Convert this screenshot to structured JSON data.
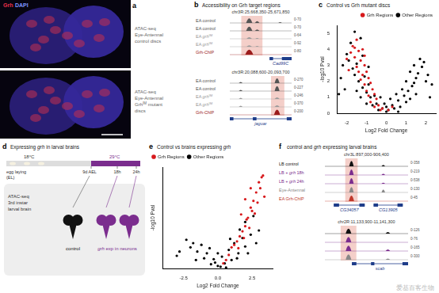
{
  "panel_a": {
    "label": "a",
    "stain": [
      "Grh",
      "DAPI"
    ],
    "captions": [
      [
        "ATAC-seq",
        "Eye-Antennal",
        "control discs"
      ],
      [
        "ATAC-seq",
        "Eye-Antennal",
        [
          "Grh",
          {
            "t": "IM",
            "sup": true
          },
          " mutant"
        ],
        "discs"
      ]
    ]
  },
  "panel_b": {
    "label": "b",
    "title": "Accessibility on Grh target regions",
    "tracks": [
      {
        "coords": "chr3R:25,668,350-25,671,850",
        "range": [
          25668350,
          25671850
        ],
        "highlight": [
          25669000,
          25670200
        ],
        "rows": [
          {
            "label": "EA control",
            "color": "#555555",
            "ymax": 70,
            "scale_label": "0-70",
            "peaks": [
              [
                25669450,
                350,
                58
              ],
              [
                25669900,
                250,
                22
              ],
              [
                25671200,
                200,
                10
              ]
            ]
          },
          {
            "label": "EA control",
            "color": "#555555",
            "ymax": 70,
            "scale_label": "0-70",
            "peaks": [
              [
                25669450,
                350,
                52
              ],
              [
                25669900,
                250,
                18
              ]
            ]
          },
          {
            "label": [
              "EA ",
              {
                "t": "grh",
                "i": true
              },
              {
                "t": "IM",
                "sup": true
              }
            ],
            "color": "#999999",
            "ymax": 64,
            "scale_label": "0-64",
            "peaks": [
              [
                25669450,
                300,
                18
              ],
              [
                25669900,
                200,
                10
              ]
            ]
          },
          {
            "label": [
              "EA ",
              {
                "t": "grh",
                "i": true
              },
              {
                "t": "IM",
                "sup": true
              }
            ],
            "color": "#999999",
            "ymax": 92,
            "scale_label": "0-92",
            "peaks": [
              [
                25669450,
                300,
                22
              ],
              [
                25669900,
                200,
                12
              ]
            ]
          },
          {
            "label": "Grh-ChIP",
            "color": "#9b1c1c",
            "ymax": 80,
            "scale_label": "0-80",
            "peaks": [
              [
                25669450,
                450,
                72
              ]
            ]
          }
        ],
        "genes": [
          {
            "name": "Cad99C",
            "start": 25670600,
            "end": 25671850,
            "exons": [
              [
                25670600,
                25670800
              ],
              [
                25671300,
                25671850
              ]
            ]
          }
        ]
      },
      {
        "coords": "chr3R:20,088,600-20,093,700",
        "range": [
          20088600,
          20093700
        ],
        "highlight": [
          20092000,
          20093100
        ],
        "rows": [
          {
            "label": "EA control",
            "color": "#555555",
            "ymax": 270,
            "scale_label": "0-270",
            "peaks": [
              [
                20089500,
                300,
                60
              ],
              [
                20092500,
                400,
                230
              ]
            ]
          },
          {
            "label": "EA control",
            "color": "#555555",
            "ymax": 227,
            "scale_label": "0-227",
            "peaks": [
              [
                20089500,
                300,
                50
              ],
              [
                20092500,
                400,
                200
              ]
            ]
          },
          {
            "label": [
              "EA ",
              {
                "t": "grh",
                "i": true
              },
              {
                "t": "IM",
                "sup": true
              }
            ],
            "color": "#999999",
            "ymax": 246,
            "scale_label": "0-246",
            "peaks": [
              [
                20089500,
                300,
                55
              ],
              [
                20092500,
                400,
                70
              ]
            ]
          },
          {
            "label": [
              "EA ",
              {
                "t": "grh",
                "i": true
              },
              {
                "t": "IM",
                "sup": true
              }
            ],
            "color": "#999999",
            "ymax": 370,
            "scale_label": "0-370",
            "peaks": [
              [
                20089500,
                300,
                80
              ],
              [
                20092500,
                400,
                110
              ]
            ]
          },
          {
            "label": "Grh-ChIP",
            "color": "#9b1c1c",
            "ymax": 200,
            "scale_label": "0-200",
            "peaks": [
              [
                20092500,
                500,
                185
              ]
            ]
          }
        ],
        "genes": [
          {
            "name": "jaguar",
            "start": 20088600,
            "end": 20093700,
            "exons": [
              [
                20088600,
                20088900
              ],
              [
                20090500,
                20090800
              ],
              [
                20093300,
                20093700
              ]
            ]
          }
        ]
      }
    ]
  },
  "panel_d": {
    "label": "d",
    "title": [
      "Expressing ",
      {
        "t": "grh",
        "i": true
      },
      " in larval brains"
    ],
    "temps": [
      "18°C",
      "29°C"
    ],
    "start": [
      "egg laying",
      "(EL)"
    ],
    "times": [
      "9d AEL",
      "18h",
      "24h"
    ],
    "assay": [
      "ATAC-seq",
      "3rd instar",
      "larval brain"
    ],
    "groups": [
      "control",
      [
        {
          "t": "grh",
          "i": true
        },
        " exp in neurons"
      ]
    ]
  },
  "panel_f": {
    "label": "f",
    "title": [
      "control and ",
      {
        "t": "grh",
        "i": true
      },
      " expressing larval brains"
    ],
    "tracks": [
      {
        "coords": "chr3L:897,000-906,400",
        "range": [
          897000,
          906400
        ],
        "highlight": [
          899300,
          900700
        ],
        "rows": [
          {
            "label": "LB control",
            "color": "#111111",
            "ymax": 358,
            "scale_label": "0-358",
            "peaks": [
              [
                900000,
                500,
                300
              ],
              [
                903600,
                400,
                80
              ]
            ]
          },
          {
            "label": [
              "LB + ",
              {
                "t": "grh",
                "i": true
              },
              " 18h"
            ],
            "color": "#7b2d8e",
            "ymax": 219,
            "scale_label": "0-219",
            "peaks": [
              [
                900000,
                500,
                190
              ],
              [
                903600,
                400,
                40
              ]
            ]
          },
          {
            "label": [
              "LB + ",
              {
                "t": "grh",
                "i": true
              },
              " 24h"
            ],
            "color": "#7b2d8e",
            "ymax": 538,
            "scale_label": "0-538",
            "peaks": [
              [
                900000,
                500,
                470
              ],
              [
                903600,
                400,
                90
              ]
            ]
          },
          {
            "label": "Eye-Antennal",
            "color": "#888888",
            "ymax": 130,
            "scale_label": "0-130",
            "peaks": [
              [
                900000,
                500,
                110
              ],
              [
                903600,
                400,
                60
              ]
            ]
          },
          {
            "label": "EA Grh-ChIP",
            "color": "#c0392b",
            "ymax": 45,
            "scale_label": "0-45",
            "peaks": [
              [
                900000,
                600,
                40
              ]
            ]
          }
        ],
        "genes": [
          {
            "name": "CG34057",
            "start": 898000,
            "end": 901500,
            "exons": [
              [
                898000,
                898600
              ],
              [
                900900,
                901500
              ]
            ]
          },
          {
            "name": "CG13905",
            "start": 902500,
            "end": 905800,
            "exons": [
              [
                902500,
                903000
              ],
              [
                905200,
                905800
              ]
            ]
          }
        ]
      },
      {
        "coords": "chr2R:11,133,900-11,141,300",
        "range": [
          11133900,
          11141300
        ],
        "highlight": [
          11135300,
          11136700
        ],
        "rows": [
          {
            "color": "#111111",
            "ymax": 126,
            "scale_label": "0-126",
            "peaks": [
              [
                11136000,
                500,
                100
              ],
              [
                11139500,
                400,
                30
              ]
            ]
          },
          {
            "color": "#7b2d8e",
            "ymax": 76,
            "scale_label": "0-76",
            "peaks": [
              [
                11136000,
                500,
                65
              ]
            ]
          },
          {
            "color": "#7b2d8e",
            "ymax": 165,
            "scale_label": "0-165",
            "peaks": [
              [
                11136000,
                500,
                140
              ],
              [
                11139500,
                400,
                40
              ]
            ]
          },
          {
            "color": "#888888",
            "ymax": 300,
            "scale_label": "0-300",
            "peaks": [
              [
                11136000,
                500,
                250
              ],
              [
                11139500,
                400,
                60
              ]
            ]
          }
        ],
        "genes": [
          {
            "name": "scab",
            "start": 11136300,
            "end": 11141300,
            "exons": [
              [
                11136300,
                11136700
              ],
              [
                11138000,
                11138300
              ],
              [
                11140800,
                11141300
              ]
            ]
          }
        ]
      }
    ]
  },
  "watermark": "爱基百客生物",
  "chart_data": [
    {
      "panel_label": "c",
      "type": "scatter",
      "title": "Control vs Grh mutant discs",
      "x_label": "Log2 Fold Change",
      "y_label": "-log10 Pval",
      "xlim": [
        -2.5,
        2.5
      ],
      "ylim": [
        0,
        5.5
      ],
      "xticks": [
        -2,
        -1,
        0,
        1,
        2
      ],
      "yticks": [
        0,
        1,
        2,
        3,
        4,
        5
      ],
      "grid": false,
      "legend": "upper right",
      "series": [
        {
          "name": "Grh Regions",
          "color": "#d7191c",
          "x": [
            -1.7,
            -1.5,
            -1.4,
            -1.2,
            -1.6,
            -1.3,
            -1.1,
            -1.5,
            -1.0,
            -1.2,
            -0.9,
            -1.4,
            -0.8,
            -1.1,
            -0.7,
            -1.0,
            -0.6,
            -0.9,
            -0.5,
            -0.8,
            -0.4,
            -0.6,
            -0.3,
            -1.8,
            -2.0,
            -1.9,
            -1.3,
            -0.2,
            0.1,
            0.3,
            -1.6,
            -1.1
          ],
          "values": [
            4.2,
            4.6,
            3.9,
            4.0,
            3.5,
            3.3,
            3.0,
            2.9,
            2.6,
            2.4,
            2.2,
            2.6,
            1.9,
            1.8,
            1.5,
            1.4,
            1.2,
            1.1,
            0.9,
            0.7,
            0.5,
            0.4,
            0.2,
            3.8,
            3.4,
            2.7,
            2.1,
            0.3,
            0.2,
            0.4,
            4.1,
            3.6
          ]
        },
        {
          "name": "Other Regions",
          "color": "#000000",
          "x": [
            -0.2,
            0.1,
            0.3,
            -0.5,
            0.6,
            -0.8,
            0.9,
            -1.0,
            1.1,
            -1.2,
            1.3,
            -1.4,
            1.4,
            -1.6,
            1.5,
            -1.7,
            1.6,
            -1.9,
            1.8,
            -2.0,
            1.9,
            -1.8,
            -1.6,
            -1.3,
            -2.2,
            2.1,
            2.3,
            -2.3,
            0.0,
            0.4,
            -0.4,
            0.7,
            -0.7,
            1.0,
            -1.0,
            1.2,
            -1.3,
            0.2,
            -0.1,
            0.5,
            0.8,
            1.0,
            1.2,
            -0.6,
            -0.9,
            -1.1,
            -1.5,
            -1.2,
            -0.9,
            1.4,
            1.7,
            2.0,
            -2.1,
            0.0,
            0.6,
            -0.3,
            1.5,
            -1.5,
            2.2,
            -2.4
          ],
          "values": [
            0.3,
            0.2,
            0.5,
            0.6,
            0.8,
            1.0,
            1.1,
            1.3,
            1.4,
            1.6,
            1.7,
            2.0,
            1.9,
            2.4,
            2.2,
            2.8,
            2.5,
            3.3,
            2.9,
            3.7,
            3.2,
            4.4,
            5.1,
            4.7,
            3.0,
            2.4,
            1.8,
            2.2,
            0.1,
            0.3,
            0.2,
            0.4,
            0.5,
            0.7,
            0.6,
            0.9,
            1.0,
            0.9,
            0.6,
            1.2,
            1.5,
            2.0,
            2.6,
            1.1,
            1.8,
            2.3,
            3.1,
            3.6,
            2.9,
            3.0,
            3.4,
            2.0,
            1.5,
            0.4,
            0.1,
            1.0,
            1.2,
            1.4,
            1.0,
            1.2
          ]
        }
      ]
    },
    {
      "panel_label": "e",
      "type": "scatter",
      "title": [
        "Control vs brains expressing ",
        {
          "t": "grh",
          "i": true
        }
      ],
      "x_label": "Log2 Fold Change",
      "y_label": "-log10 Pval",
      "xlim": [
        -4,
        4
      ],
      "ylim": [
        0,
        12
      ],
      "xticks": [
        -2.5,
        {
          "value": 0,
          "label": "0.0"
        },
        2.5
      ],
      "tick_labels": "x",
      "grid": false,
      "legend": "upper left",
      "series": [
        {
          "name": "Grh Regions",
          "color": "#d7191c",
          "x": [
            1.0,
            1.4,
            1.8,
            2.0,
            2.2,
            2.4,
            2.6,
            2.8,
            3.0,
            3.2,
            2.5,
            2.1,
            1.6,
            1.2,
            0.8,
            0.6,
            2.9,
            3.1,
            2.3,
            2.7,
            3.4,
            1.9,
            1.5,
            2.4,
            2.0,
            1.7,
            3.3,
            0.4
          ],
          "values": [
            2.5,
            3.2,
            4.4,
            5.0,
            6.0,
            7.2,
            8.0,
            9.0,
            10.2,
            10.8,
            6.8,
            5.8,
            3.8,
            2.8,
            1.6,
            1.0,
            7.8,
            9.5,
            4.8,
            6.5,
            8.5,
            3.6,
            2.4,
            9.5,
            8.2,
            6.4,
            11.0,
            0.6
          ]
        },
        {
          "name": "Other Regions",
          "color": "#000000",
          "x": [
            -0.5,
            0.0,
            0.5,
            1.0,
            -1.0,
            1.5,
            -1.5,
            2.0,
            -2.0,
            0.3,
            -0.3,
            0.8,
            -0.8,
            1.2,
            -1.2,
            1.8,
            -1.8,
            2.4,
            -2.3,
            0.2,
            0.6,
            -0.2,
            1.4,
            2.2,
            2.8,
            3.0,
            -2.8,
            -3.0,
            0.9,
            1.6,
            2.0,
            2.6,
            -1.6,
            -0.6,
            0.0
          ],
          "values": [
            0.5,
            0.3,
            0.6,
            1.0,
            1.2,
            1.8,
            2.0,
            2.6,
            2.5,
            1.4,
            1.1,
            2.2,
            1.8,
            3.0,
            2.8,
            3.6,
            3.0,
            4.0,
            3.4,
            0.2,
            0.1,
            0.7,
            1.2,
            1.8,
            3.0,
            4.5,
            2.0,
            1.5,
            3.5,
            4.6,
            5.5,
            6.2,
            1.0,
            2.4,
            1.8
          ]
        }
      ]
    }
  ]
}
